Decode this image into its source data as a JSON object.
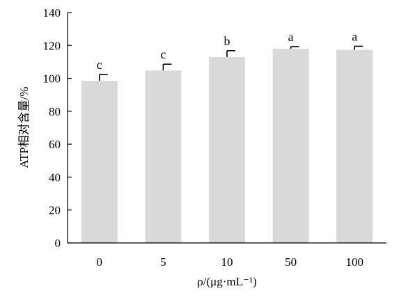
{
  "chart_data": {
    "type": "bar",
    "categories": [
      "0",
      "5",
      "10",
      "50",
      "100"
    ],
    "values": [
      98.5,
      104.8,
      113.0,
      118.0,
      117.3
    ],
    "errors": [
      3.8,
      3.8,
      3.8,
      1.3,
      2.2
    ],
    "significance": [
      "c",
      "c",
      "b",
      "a",
      "a"
    ],
    "ylabel": "ATP相对含量/%",
    "xlabel": "ρ/(μg·mL⁻¹)",
    "ylim": [
      0,
      140
    ],
    "yticks": [
      0,
      20,
      40,
      60,
      80,
      100,
      120,
      140
    ],
    "grid": false,
    "colors": {
      "bar": "#d9d9d9",
      "axis": "#000000"
    }
  }
}
